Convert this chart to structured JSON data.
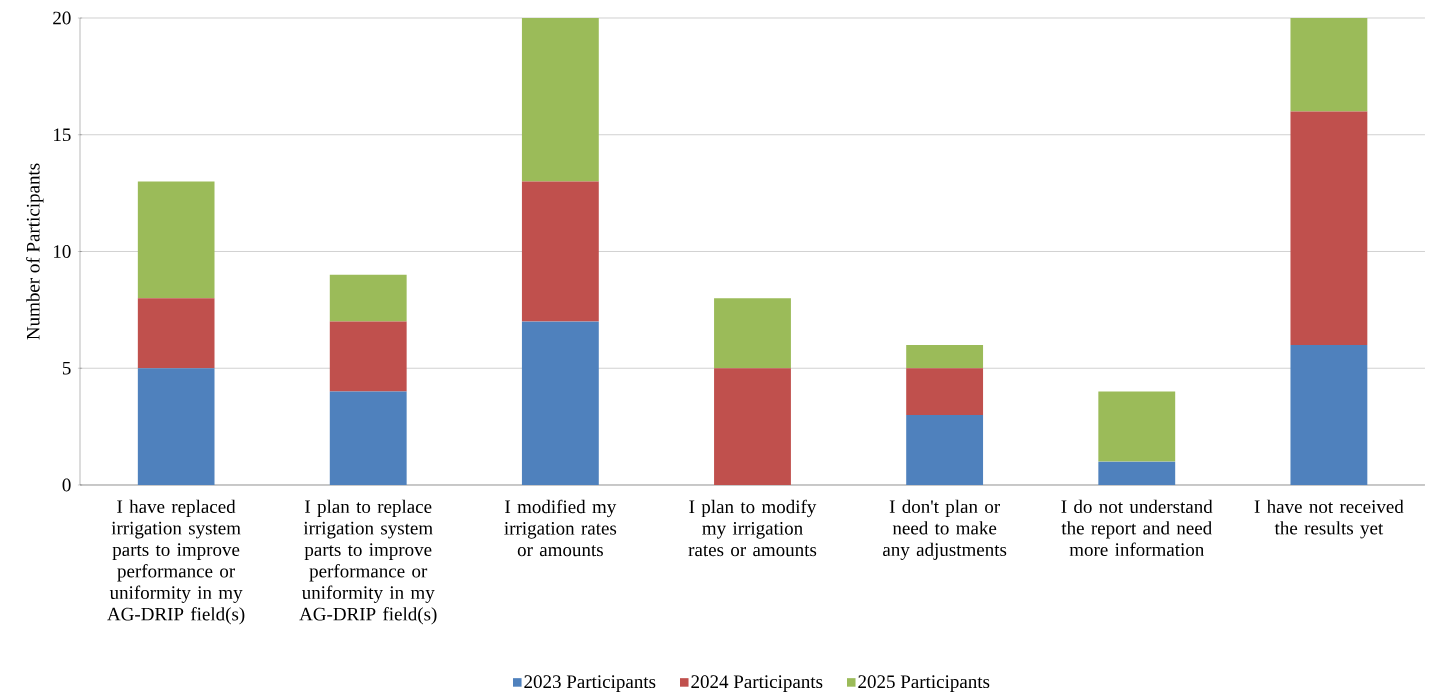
{
  "chart_data": {
    "type": "bar",
    "stacked": true,
    "ylabel": "Number of Participants",
    "categories": [
      "I have replaced irrigation system parts to improve performance or uniformity in my AG-DRIP field(s)",
      "I plan to replace irrigation system parts to improve performance or uniformity in my AG-DRIP field(s)",
      "I modified my irrigation rates or amounts",
      "I plan to modify my irrigation rates or amounts",
      "I don't plan or need to make any adjustments",
      "I do not understand the report and need more information",
      "I have not received the results yet"
    ],
    "series": [
      {
        "name": "2023 Participants",
        "color": "#4f81bd",
        "values": [
          5,
          4,
          7,
          0,
          3,
          1,
          6
        ]
      },
      {
        "name": "2024 Participants",
        "color": "#c0504d",
        "values": [
          3,
          3,
          6,
          5,
          2,
          0,
          10
        ]
      },
      {
        "name": "2025 Participants",
        "color": "#9bbb59",
        "values": [
          5,
          2,
          7,
          3,
          1,
          3,
          4
        ]
      }
    ],
    "ylim": [
      0,
      20
    ],
    "yticks": [
      0,
      5,
      10,
      15,
      20
    ],
    "grid": "y",
    "legend": "bottom"
  }
}
